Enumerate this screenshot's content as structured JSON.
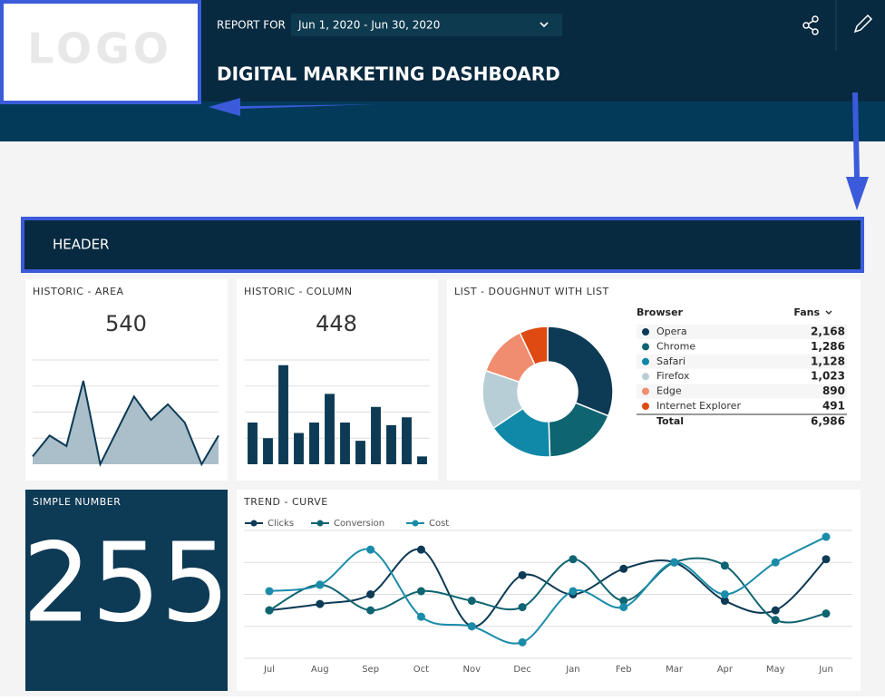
{
  "logo": "LOGO",
  "report_for_label": "REPORT FOR",
  "date_range": "Jun 1, 2020 - Jun 30, 2020",
  "dashboard_title": "DIGITAL MARKETING DASHBOARD",
  "section_header": "HEADER",
  "simple_number": {
    "title": "SIMPLE NUMBER",
    "value": 255
  },
  "chart_data": [
    {
      "type": "area",
      "title": "HISTORIC - AREA",
      "value": 540,
      "color": "#0d3a55",
      "fill": "#aabfc9",
      "values": [
        0.3,
        1.1,
        0.7,
        3.2,
        0.0,
        1.3,
        2.6,
        1.7,
        2.3,
        1.6,
        0.0,
        1.1
      ],
      "ylim": [
        0,
        4
      ],
      "yticks": [
        1,
        2,
        3,
        4
      ],
      "grid": true
    },
    {
      "type": "bar",
      "title": "HISTORIC - COLUMN",
      "value": 448,
      "color": "#0d3a55",
      "values": [
        1.6,
        1.0,
        3.8,
        1.2,
        1.6,
        2.7,
        1.6,
        0.9,
        2.2,
        1.5,
        1.8,
        0.3
      ],
      "ylim": [
        0,
        4
      ],
      "yticks": [
        1,
        2,
        3,
        4
      ],
      "grid": true
    },
    {
      "type": "doughnut",
      "title": "LIST - DOUGHNUT WITH LIST",
      "column_headers": [
        "Browser",
        "Fans"
      ],
      "categories": [
        "Opera",
        "Chrome",
        "Safari",
        "Firefox",
        "Edge",
        "Internet Explorer"
      ],
      "values": [
        2168,
        1286,
        1128,
        1023,
        890,
        491
      ],
      "value_labels": [
        "2,168",
        "1,286",
        "1,128",
        "1,023",
        "890",
        "491"
      ],
      "colors": [
        "#0d3a55",
        "#0e6470",
        "#1088a8",
        "#b8ced6",
        "#ef8d6e",
        "#de4a12"
      ],
      "total_label": "Total",
      "total": 6986,
      "total_value_label": "6,986"
    },
    {
      "type": "line",
      "title": "TREND - CURVE",
      "categories": [
        "Jul",
        "Aug",
        "Sep",
        "Oct",
        "Nov",
        "Dec",
        "Jan",
        "Feb",
        "Mar",
        "Apr",
        "May",
        "Jun"
      ],
      "series": [
        {
          "name": "Clicks",
          "color": "#0d3a55",
          "values": [
            1.5,
            1.7,
            2.0,
            3.4,
            1.0,
            2.6,
            2.0,
            2.8,
            3.0,
            1.8,
            1.5,
            3.1
          ]
        },
        {
          "name": "Conversion",
          "color": "#0e6470",
          "values": [
            1.5,
            2.3,
            1.5,
            2.1,
            1.8,
            1.6,
            3.1,
            1.8,
            3.0,
            2.9,
            1.2,
            1.4
          ]
        },
        {
          "name": "Cost",
          "color": "#1a8caa",
          "values": [
            2.1,
            2.3,
            3.4,
            1.3,
            1.0,
            0.5,
            2.1,
            1.6,
            3.0,
            2.0,
            3.0,
            3.8
          ]
        }
      ],
      "ylim": [
        0,
        4
      ],
      "yticks": [
        0,
        1,
        2,
        3,
        4
      ],
      "grid": true
    }
  ]
}
